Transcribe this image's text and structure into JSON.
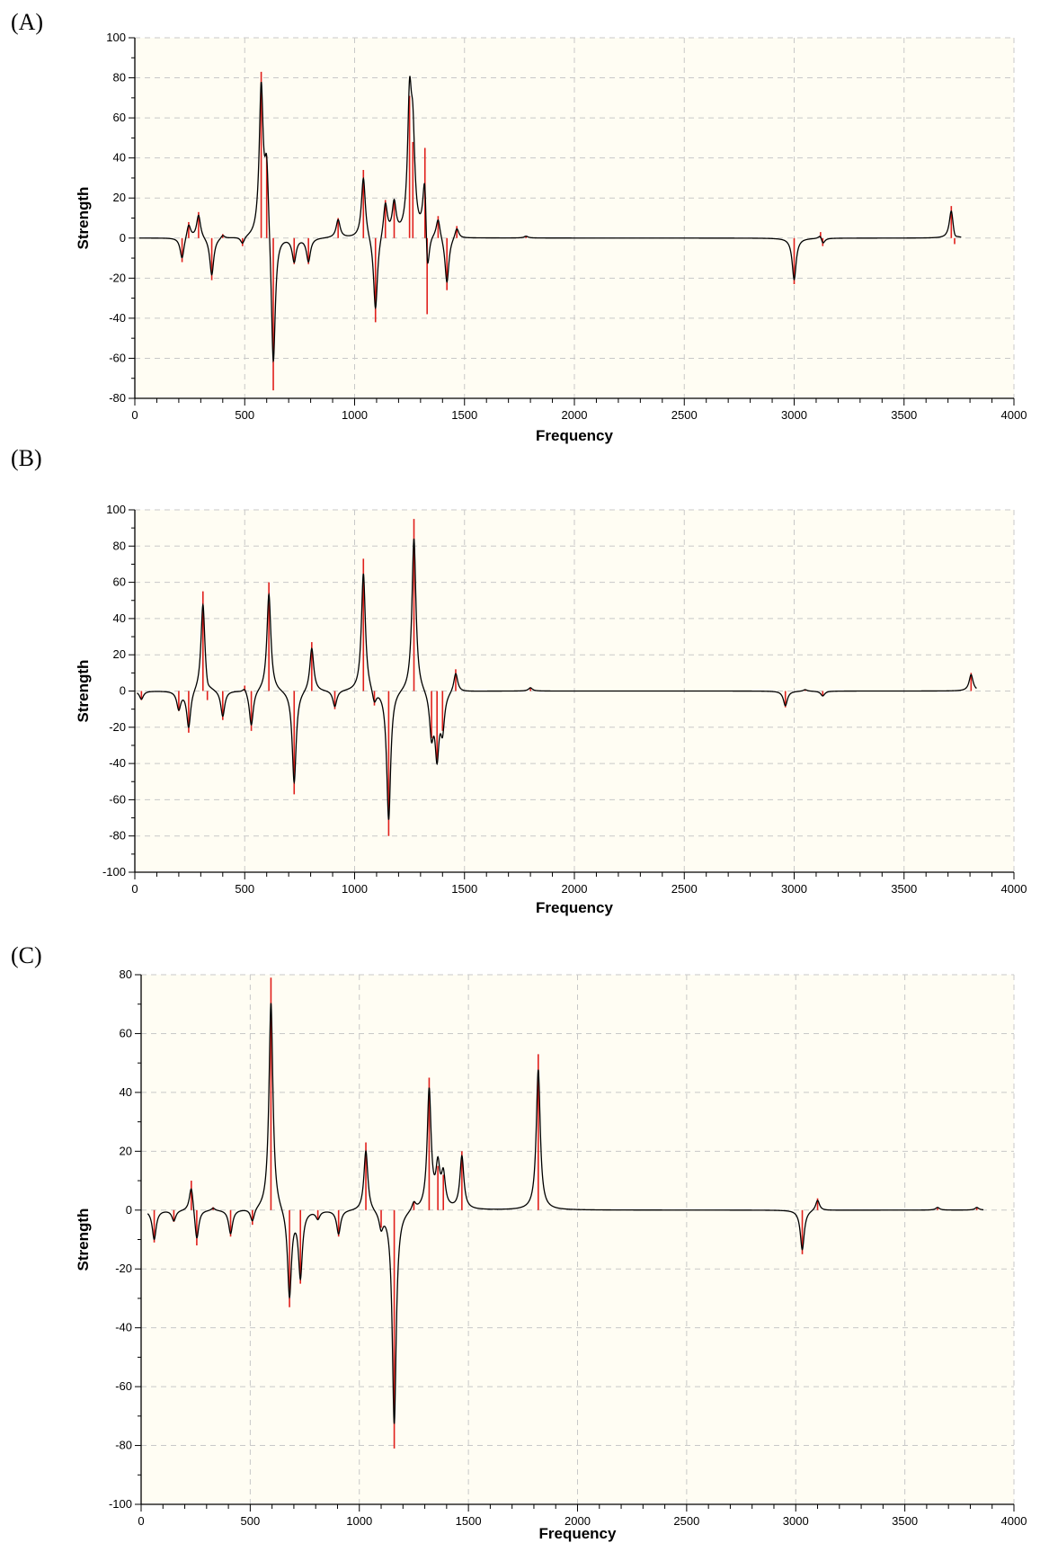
{
  "colors": {
    "plot_background": "#fffdf3",
    "stick": "#e0201c",
    "curve": "#000000",
    "grid": "#c8c8c8"
  },
  "chart_data": [
    {
      "label": "(A)",
      "type": "line",
      "xlabel": "Frequency",
      "ylabel": "Strength",
      "xlim": [
        0,
        4000
      ],
      "ylim": [
        -80,
        100
      ],
      "ystep": 20,
      "grid": true,
      "xticks": [
        "0",
        "500",
        "1000",
        "1500",
        "2000",
        "2500",
        "3000",
        "3500",
        "4000"
      ],
      "yticks": [
        "100",
        "80",
        "60",
        "40",
        "20",
        "0",
        "-20",
        "-40",
        "-60",
        "-80"
      ],
      "curve_range": [
        20,
        3760
      ],
      "width": 22,
      "peaks": [
        {
          "x": 215,
          "y": -12
        },
        {
          "x": 245,
          "y": 8
        },
        {
          "x": 290,
          "y": 13
        },
        {
          "x": 350,
          "y": -21
        },
        {
          "x": 400,
          "y": 2
        },
        {
          "x": 490,
          "y": -4
        },
        {
          "x": 575,
          "y": 83
        },
        {
          "x": 600,
          "y": 41
        },
        {
          "x": 630,
          "y": -76
        },
        {
          "x": 725,
          "y": -13
        },
        {
          "x": 790,
          "y": -13
        },
        {
          "x": 925,
          "y": 10
        },
        {
          "x": 1040,
          "y": 34
        },
        {
          "x": 1095,
          "y": -42
        },
        {
          "x": 1140,
          "y": 19
        },
        {
          "x": 1180,
          "y": 18
        },
        {
          "x": 1250,
          "y": 71
        },
        {
          "x": 1265,
          "y": 48
        },
        {
          "x": 1320,
          "y": 45
        },
        {
          "x": 1330,
          "y": -38
        },
        {
          "x": 1380,
          "y": 11
        },
        {
          "x": 1420,
          "y": -26
        },
        {
          "x": 1465,
          "y": 6
        },
        {
          "x": 1780,
          "y": 1
        },
        {
          "x": 3000,
          "y": -23
        },
        {
          "x": 3120,
          "y": 3
        },
        {
          "x": 3130,
          "y": -4
        },
        {
          "x": 3715,
          "y": 16
        },
        {
          "x": 3730,
          "y": -3
        }
      ]
    },
    {
      "label": "(B)",
      "type": "line",
      "xlabel": "Frequency",
      "ylabel": "Strength",
      "xlim": [
        0,
        4000
      ],
      "ylim": [
        -100,
        100
      ],
      "ystep": 20,
      "grid": true,
      "xticks": [
        "0",
        "500",
        "1000",
        "1500",
        "2000",
        "2500",
        "3000",
        "3500",
        "4000"
      ],
      "yticks": [
        "100",
        "80",
        "60",
        "40",
        "20",
        "0",
        "-20",
        "-40",
        "-60",
        "-80",
        "-100"
      ],
      "curve_range": [
        10,
        3830
      ],
      "width": 22,
      "peaks": [
        {
          "x": 30,
          "y": -5
        },
        {
          "x": 200,
          "y": -11
        },
        {
          "x": 245,
          "y": -23
        },
        {
          "x": 310,
          "y": 55
        },
        {
          "x": 330,
          "y": -5
        },
        {
          "x": 400,
          "y": -16
        },
        {
          "x": 500,
          "y": 3
        },
        {
          "x": 530,
          "y": -22
        },
        {
          "x": 610,
          "y": 60
        },
        {
          "x": 725,
          "y": -57
        },
        {
          "x": 805,
          "y": 27
        },
        {
          "x": 910,
          "y": -10
        },
        {
          "x": 1040,
          "y": 73
        },
        {
          "x": 1090,
          "y": -8
        },
        {
          "x": 1155,
          "y": -80
        },
        {
          "x": 1270,
          "y": 95
        },
        {
          "x": 1350,
          "y": -26
        },
        {
          "x": 1375,
          "y": -38
        },
        {
          "x": 1400,
          "y": -22
        },
        {
          "x": 1460,
          "y": 12
        },
        {
          "x": 1800,
          "y": 2
        },
        {
          "x": 2960,
          "y": -9
        },
        {
          "x": 3050,
          "y": 1
        },
        {
          "x": 3130,
          "y": -3
        },
        {
          "x": 3805,
          "y": 10
        }
      ]
    },
    {
      "label": "(C)",
      "type": "line",
      "xlabel": "Frequency",
      "ylabel": "Strength",
      "xlim": [
        0,
        4000
      ],
      "ylim": [
        -100,
        80
      ],
      "ystep": 20,
      "grid": true,
      "xticks": [
        "0",
        "500",
        "1000",
        "1500",
        "2000",
        "2500",
        "3000",
        "3500",
        "4000"
      ],
      "yticks": [
        "80",
        "60",
        "40",
        "20",
        "0",
        "-20",
        "-40",
        "-60",
        "-80",
        "-100"
      ],
      "curve_range": [
        30,
        3860
      ],
      "width": 22,
      "peaks": [
        {
          "x": 60,
          "y": -11
        },
        {
          "x": 150,
          "y": -4
        },
        {
          "x": 230,
          "y": 10
        },
        {
          "x": 255,
          "y": -12
        },
        {
          "x": 330,
          "y": 1
        },
        {
          "x": 410,
          "y": -9
        },
        {
          "x": 510,
          "y": -5
        },
        {
          "x": 595,
          "y": 79
        },
        {
          "x": 680,
          "y": -33
        },
        {
          "x": 730,
          "y": -25
        },
        {
          "x": 810,
          "y": -3
        },
        {
          "x": 905,
          "y": -9
        },
        {
          "x": 1030,
          "y": 23
        },
        {
          "x": 1100,
          "y": -6
        },
        {
          "x": 1160,
          "y": -81
        },
        {
          "x": 1250,
          "y": 3
        },
        {
          "x": 1320,
          "y": 45
        },
        {
          "x": 1360,
          "y": 15
        },
        {
          "x": 1385,
          "y": 12
        },
        {
          "x": 1470,
          "y": 20
        },
        {
          "x": 1820,
          "y": 53
        },
        {
          "x": 3030,
          "y": -15
        },
        {
          "x": 3100,
          "y": 4
        },
        {
          "x": 3650,
          "y": 1
        },
        {
          "x": 3830,
          "y": 1
        }
      ]
    }
  ]
}
